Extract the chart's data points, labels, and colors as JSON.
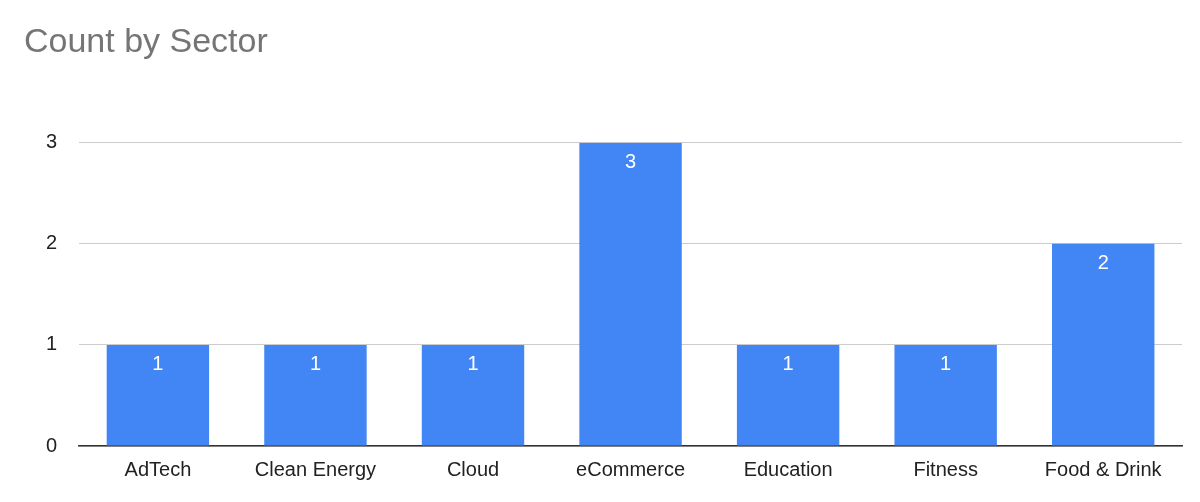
{
  "chart_data": {
    "type": "bar",
    "title": "Count by Sector",
    "categories": [
      "AdTech",
      "Clean Energy",
      "Cloud",
      "eCommerce",
      "Education",
      "Fitness",
      "Food & Drink"
    ],
    "values": [
      1,
      1,
      1,
      3,
      1,
      1,
      2
    ],
    "color": "#4285f4",
    "ylim": [
      0,
      3
    ],
    "yticks": [
      0,
      1,
      2,
      3
    ],
    "grid": "y",
    "data_labels": true
  }
}
